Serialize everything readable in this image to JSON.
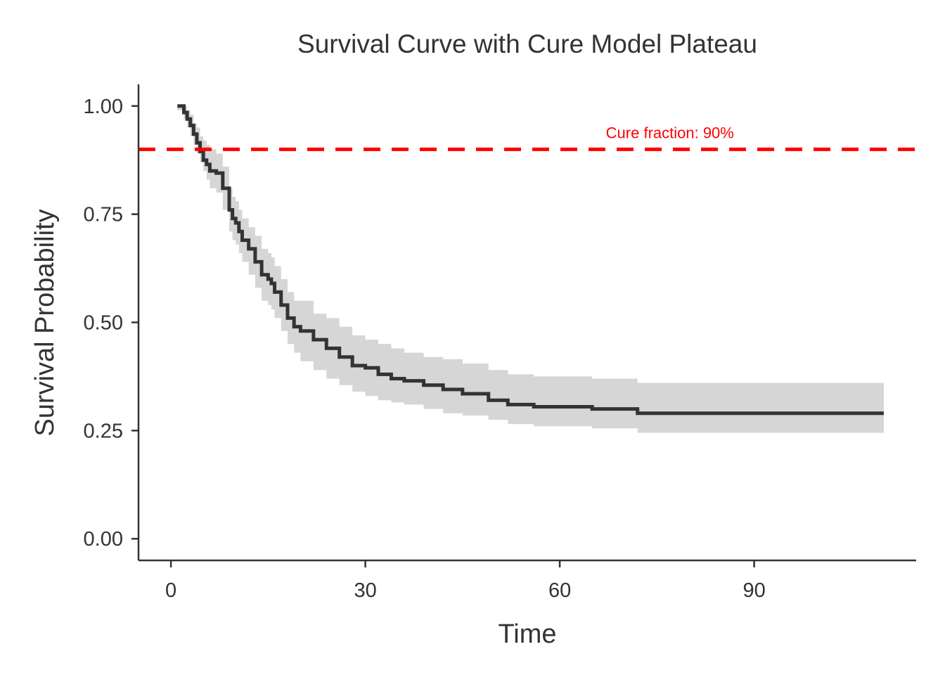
{
  "chart_data": {
    "type": "line",
    "title": "Survival Curve with Cure Model Plateau",
    "xlabel": "Time",
    "ylabel": "Survival Probability",
    "xlim": [
      -5,
      115
    ],
    "ylim": [
      -0.05,
      1.05
    ],
    "x_ticks": [
      0,
      30,
      60,
      90
    ],
    "x_tick_labels": [
      "0",
      "30",
      "60",
      "90"
    ],
    "y_ticks": [
      0,
      0.25,
      0.5,
      0.75,
      1.0
    ],
    "y_tick_labels": [
      "0.00",
      "0.25",
      "0.50",
      "0.75",
      "1.00"
    ],
    "grid": false,
    "legend": "none",
    "colors": {
      "curve": "#333333",
      "band": "#d6d6d6",
      "reference": "#ff0000",
      "axis": "#333333"
    },
    "series": [
      {
        "style": "step",
        "x": [
          1,
          2,
          2.5,
          3,
          3.5,
          4,
          4.5,
          5,
          5.5,
          6,
          7,
          8,
          9,
          9.5,
          10,
          10.5,
          11,
          12,
          13,
          14,
          15,
          15.5,
          16,
          17,
          18,
          19,
          20,
          22,
          24,
          26,
          28,
          30,
          32,
          34,
          36,
          39,
          42,
          45,
          49,
          52,
          56,
          65,
          72,
          110
        ],
        "values": [
          1.0,
          0.985,
          0.97,
          0.955,
          0.935,
          0.915,
          0.895,
          0.875,
          0.865,
          0.85,
          0.845,
          0.81,
          0.76,
          0.74,
          0.73,
          0.71,
          0.69,
          0.67,
          0.64,
          0.61,
          0.6,
          0.59,
          0.57,
          0.54,
          0.51,
          0.49,
          0.48,
          0.46,
          0.44,
          0.42,
          0.4,
          0.395,
          0.38,
          0.37,
          0.365,
          0.355,
          0.345,
          0.335,
          0.32,
          0.31,
          0.305,
          0.3,
          0.29,
          0.29
        ],
        "lower": [
          0.99,
          0.97,
          0.95,
          0.93,
          0.91,
          0.89,
          0.87,
          0.85,
          0.83,
          0.81,
          0.8,
          0.76,
          0.71,
          0.69,
          0.68,
          0.66,
          0.64,
          0.61,
          0.58,
          0.55,
          0.54,
          0.53,
          0.51,
          0.48,
          0.45,
          0.43,
          0.41,
          0.39,
          0.37,
          0.355,
          0.34,
          0.33,
          0.32,
          0.315,
          0.31,
          0.3,
          0.29,
          0.285,
          0.275,
          0.265,
          0.26,
          0.255,
          0.245,
          0.235
        ],
        "upper": [
          1.0,
          1.0,
          0.99,
          0.98,
          0.96,
          0.95,
          0.93,
          0.92,
          0.91,
          0.9,
          0.89,
          0.86,
          0.81,
          0.79,
          0.78,
          0.76,
          0.74,
          0.72,
          0.7,
          0.67,
          0.66,
          0.65,
          0.63,
          0.6,
          0.57,
          0.55,
          0.55,
          0.52,
          0.51,
          0.49,
          0.47,
          0.46,
          0.45,
          0.44,
          0.43,
          0.42,
          0.415,
          0.405,
          0.39,
          0.38,
          0.375,
          0.37,
          0.36,
          0.355
        ]
      }
    ],
    "reference_line": {
      "y": 0.9,
      "style": "dashed",
      "label": "Cure fraction: 90%",
      "label_x": 77
    }
  }
}
